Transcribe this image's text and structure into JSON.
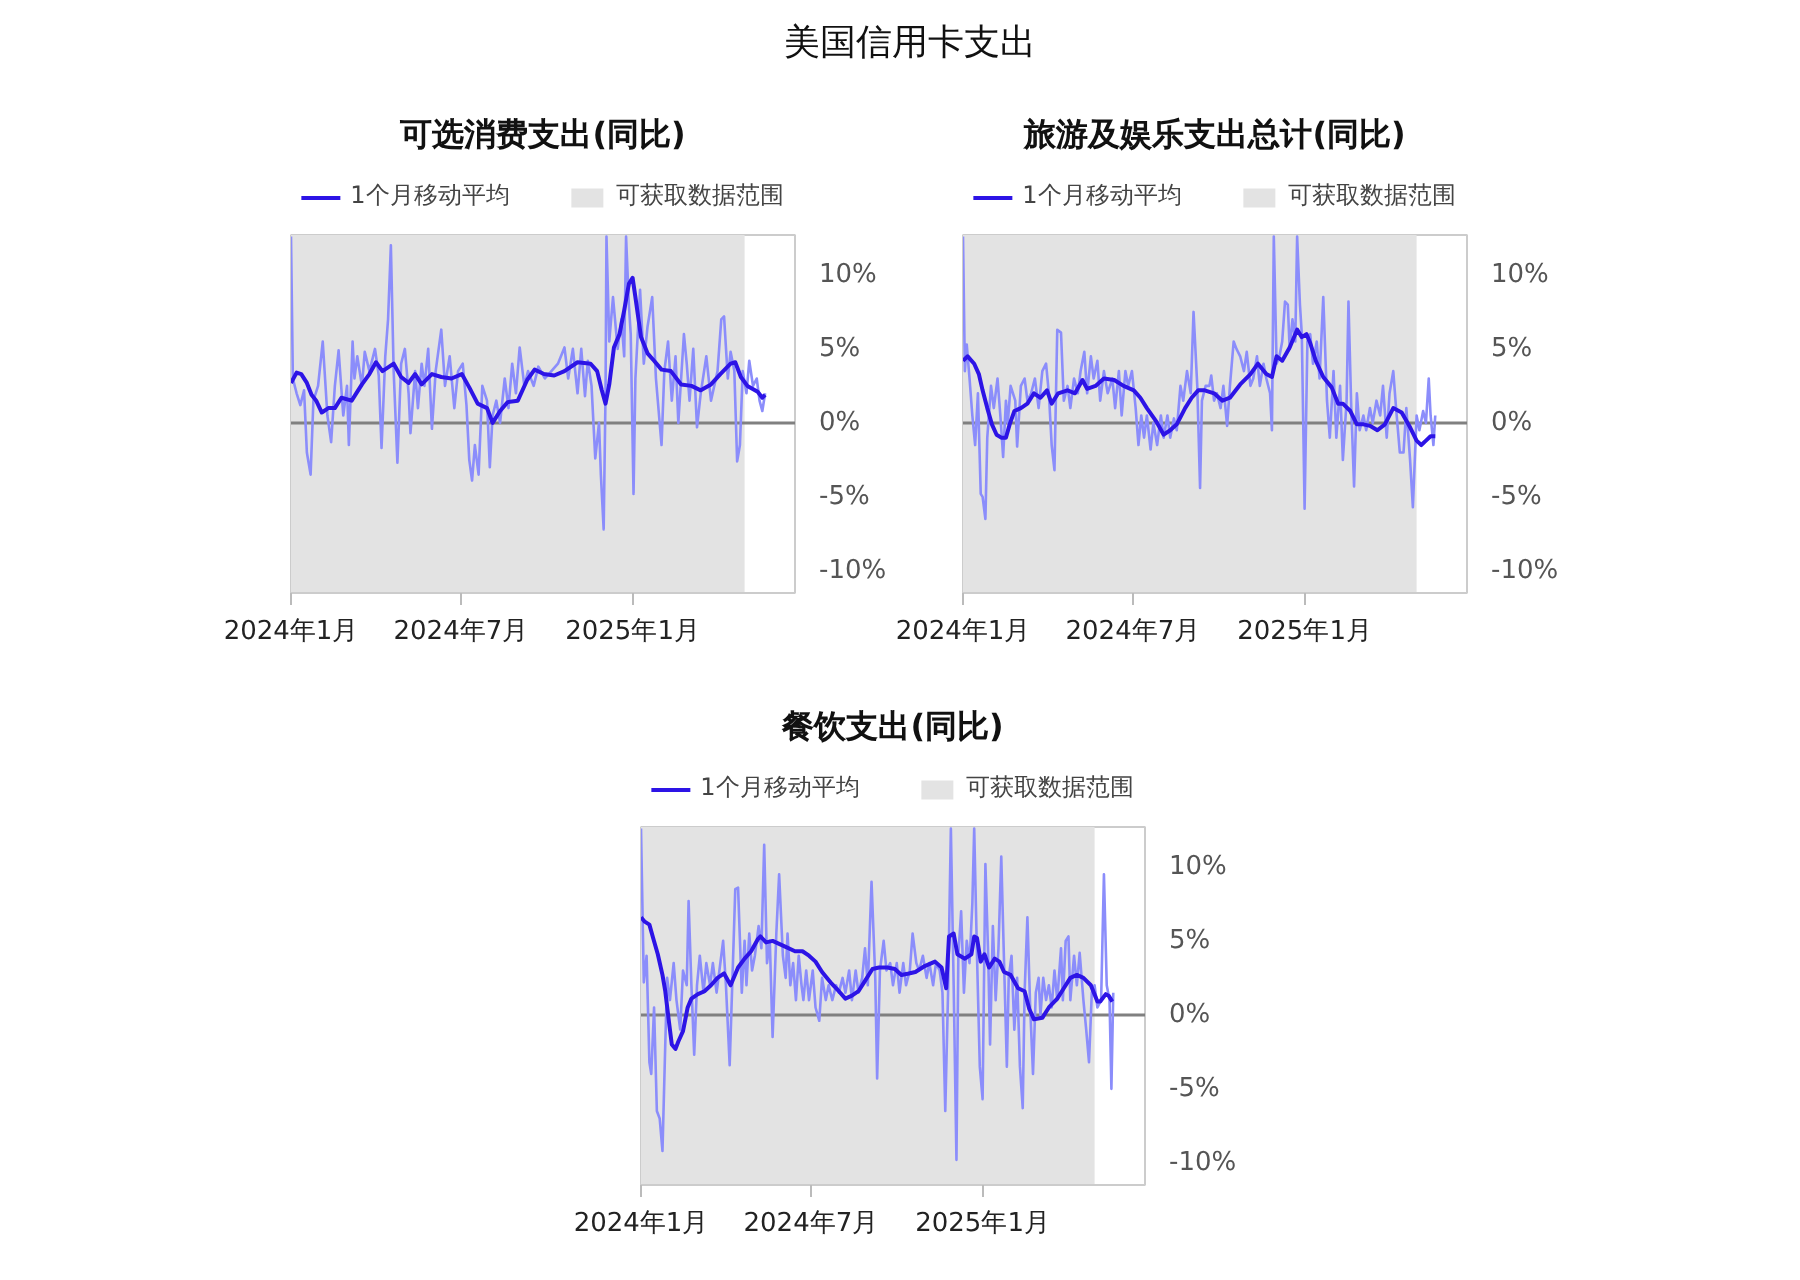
{
  "chart_data": [
    {
      "type": "line",
      "title": "可选消费支出(同比)",
      "annotations": [
        "美国信用卡支出"
      ],
      "legend": "top",
      "grid": false,
      "xlim": [
        "2024-01-01",
        "2025-06-24"
      ],
      "xticks": [
        {
          "value": "2024-01-01",
          "label": "2024年1月"
        },
        {
          "value": "2024-07-01",
          "label": "2024年7月"
        },
        {
          "value": "2025-01-01",
          "label": "2025年1月"
        }
      ],
      "ylim": [
        -11.5,
        12.7
      ],
      "yticks": [
        {
          "value": -10,
          "label": "-10%"
        },
        {
          "value": -5,
          "label": "-5%"
        },
        {
          "value": 0,
          "label": "0%"
        },
        {
          "value": 5,
          "label": "5%"
        },
        {
          "value": 10,
          "label": "10%"
        }
      ],
      "bands": [
        {
          "axis": "x",
          "from": "2024-01-01",
          "to": "2025-05-01",
          "label": "可获取数据范围",
          "color": "#e3e3e3"
        }
      ],
      "ref_lines": [
        {
          "axis": "y",
          "value": 0,
          "color": "#808080"
        }
      ],
      "series": [
        {
          "color": "#8b8dfb",
          "x": [
            "2024-01-01",
            "2024-01-03",
            "2024-01-07",
            "2024-01-11",
            "2024-01-15",
            "2024-01-18",
            "2024-01-22",
            "2024-01-25",
            "2024-01-30",
            "2024-02-04",
            "2024-02-09",
            "2024-02-13",
            "2024-02-17",
            "2024-02-21",
            "2024-02-26",
            "2024-03-01",
            "2024-03-03",
            "2024-03-07",
            "2024-03-09",
            "2024-03-12",
            "2024-03-17",
            "2024-03-20",
            "2024-03-25",
            "2024-03-31",
            "2024-04-04",
            "2024-04-07",
            "2024-04-11",
            "2024-04-14",
            "2024-04-17",
            "2024-04-20",
            "2024-04-24",
            "2024-04-28",
            "2024-05-02",
            "2024-05-06",
            "2024-05-08",
            "2024-05-13",
            "2024-05-16",
            "2024-05-20",
            "2024-05-23",
            "2024-05-27",
            "2024-05-31",
            "2024-06-04",
            "2024-06-10",
            "2024-06-14",
            "2024-06-19",
            "2024-06-24",
            "2024-06-28",
            "2024-07-03",
            "2024-07-07",
            "2024-07-10",
            "2024-07-13",
            "2024-07-16",
            "2024-07-20",
            "2024-07-24",
            "2024-07-29",
            "2024-08-01",
            "2024-08-04",
            "2024-08-08",
            "2024-08-12",
            "2024-08-17",
            "2024-08-21",
            "2024-08-25",
            "2024-08-29",
            "2024-09-02",
            "2024-09-07",
            "2024-09-11",
            "2024-09-17",
            "2024-09-22",
            "2024-09-29",
            "2024-10-06",
            "2024-10-13",
            "2024-10-20",
            "2024-10-24",
            "2024-10-29",
            "2024-11-03",
            "2024-11-07",
            "2024-11-11",
            "2024-11-14",
            "2024-11-18",
            "2024-11-22",
            "2024-11-26",
            "2024-11-28",
            "2024-12-01",
            "2024-12-03",
            "2024-12-04",
            "2024-12-07",
            "2024-12-11",
            "2024-12-16",
            "2024-12-20",
            "2024-12-23",
            "2024-12-25",
            "2024-12-28",
            "2024-12-30",
            "2025-01-02",
            "2025-01-04",
            "2025-01-09",
            "2025-01-13",
            "2025-01-17",
            "2025-01-22",
            "2025-01-26",
            "2025-02-01",
            "2025-02-04",
            "2025-02-08",
            "2025-02-12",
            "2025-02-16",
            "2025-02-19",
            "2025-02-22",
            "2025-02-25",
            "2025-02-28",
            "2025-03-03",
            "2025-03-07",
            "2025-03-11",
            "2025-03-15",
            "2025-03-21",
            "2025-03-26",
            "2025-04-02",
            "2025-04-06",
            "2025-04-09",
            "2025-04-13",
            "2025-04-16",
            "2025-04-20",
            "2025-04-23",
            "2025-04-26",
            "2025-04-29",
            "2025-05-03",
            "2025-05-06",
            "2025-05-10",
            "2025-05-14",
            "2025-05-17",
            "2025-05-20",
            "2025-05-23"
          ],
          "values": [
            12.6,
            3.0,
            2.0,
            1.2,
            2.2,
            -2.0,
            -3.5,
            1.5,
            2.5,
            5.5,
            0.5,
            -1.3,
            2.5,
            4.9,
            0.5,
            2.5,
            -1.5,
            5.5,
            3.0,
            4.5,
            2.5,
            4.8,
            3.5,
            5.0,
            3.2,
            -1.7,
            4.5,
            7.0,
            12.0,
            3.5,
            -2.7,
            4.0,
            5.0,
            2.0,
            -0.7,
            3.5,
            1.0,
            4.0,
            2.5,
            5.0,
            -0.4,
            3.5,
            6.3,
            2.5,
            4.5,
            1.0,
            3.5,
            4.0,
            1.2,
            -2.5,
            -3.9,
            -1.5,
            -3.5,
            2.5,
            1.5,
            -3.0,
            0.5,
            1.5,
            0.0,
            3.0,
            1.0,
            4.0,
            2.0,
            5.1,
            2.5,
            3.5,
            2.5,
            3.8,
            3.0,
            3.5,
            4.0,
            5.1,
            3.0,
            5.0,
            2.0,
            5.0,
            1.8,
            4.2,
            2.5,
            -2.4,
            0.0,
            -3.5,
            -7.2,
            2.0,
            12.6,
            5.5,
            8.5,
            5.0,
            7.0,
            4.5,
            12.6,
            8.0,
            6.0,
            -4.8,
            3.0,
            9.0,
            4.0,
            6.5,
            8.5,
            3.0,
            -1.5,
            3.5,
            5.5,
            1.5,
            4.5,
            0.0,
            3.0,
            6.0,
            4.0,
            1.5,
            5.0,
            -0.3,
            2.0,
            4.5,
            1.5,
            3.5,
            7.0,
            7.2,
            3.0,
            4.8,
            3.5,
            -2.6,
            -1.5,
            3.5,
            2.0,
            4.2,
            2.5,
            3.0,
            1.5,
            0.8,
            2.0
          ]
        },
        {
          "name": "1个月移动平均",
          "color": "#2d14e6",
          "x": [
            "2024-01-01",
            "2024-01-07",
            "2024-01-12",
            "2024-01-18",
            "2024-01-23",
            "2024-01-28",
            "2024-02-03",
            "2024-02-10",
            "2024-02-17",
            "2024-02-24",
            "2024-03-06",
            "2024-03-17",
            "2024-03-25",
            "2024-04-01",
            "2024-04-08",
            "2024-04-20",
            "2024-04-28",
            "2024-05-06",
            "2024-05-13",
            "2024-05-20",
            "2024-05-31",
            "2024-06-10",
            "2024-06-21",
            "2024-07-02",
            "2024-07-10",
            "2024-07-19",
            "2024-07-29",
            "2024-08-04",
            "2024-08-12",
            "2024-08-20",
            "2024-08-31",
            "2024-09-10",
            "2024-09-18",
            "2024-09-28",
            "2024-10-09",
            "2024-10-20",
            "2024-11-03",
            "2024-11-17",
            "2024-11-24",
            "2024-11-29",
            "2024-12-03",
            "2024-12-07",
            "2024-12-12",
            "2024-12-18",
            "2024-12-23",
            "2024-12-28",
            "2025-01-01",
            "2025-01-04",
            "2025-01-10",
            "2025-01-17",
            "2025-01-24",
            "2025-02-01",
            "2025-02-11",
            "2025-02-22",
            "2025-03-05",
            "2025-03-15",
            "2025-03-26",
            "2025-04-05",
            "2025-04-16",
            "2025-04-21",
            "2025-04-27",
            "2025-05-04",
            "2025-05-15",
            "2025-05-20",
            "2025-05-23"
          ],
          "values": [
            2.7,
            3.4,
            3.3,
            2.7,
            1.9,
            1.5,
            0.7,
            1.0,
            1.0,
            1.7,
            1.5,
            2.6,
            3.3,
            4.1,
            3.5,
            4.0,
            3.1,
            2.7,
            3.3,
            2.6,
            3.3,
            3.1,
            3.0,
            3.3,
            2.4,
            1.3,
            1.0,
            0.0,
            0.8,
            1.4,
            1.5,
            2.9,
            3.6,
            3.3,
            3.2,
            3.5,
            4.1,
            4.0,
            3.5,
            2.2,
            1.3,
            2.6,
            5.1,
            6.0,
            7.6,
            9.4,
            9.8,
            8.5,
            5.8,
            4.7,
            4.2,
            3.6,
            3.5,
            2.6,
            2.5,
            2.2,
            2.6,
            3.3,
            4.0,
            4.1,
            3.1,
            2.5,
            2.1,
            1.7,
            1.9
          ]
        }
      ]
    },
    {
      "type": "line",
      "title": "旅游及娱乐支出总计(同比)",
      "legend": "top",
      "grid": false,
      "xlim": [
        "2024-01-01",
        "2025-06-24"
      ],
      "xticks": [
        {
          "value": "2024-01-01",
          "label": "2024年1月"
        },
        {
          "value": "2024-07-01",
          "label": "2024年7月"
        },
        {
          "value": "2025-01-01",
          "label": "2025年1月"
        }
      ],
      "ylim": [
        -11.5,
        12.7
      ],
      "yticks": [
        {
          "value": -10,
          "label": "-10%"
        },
        {
          "value": -5,
          "label": "-5%"
        },
        {
          "value": 0,
          "label": "0%"
        },
        {
          "value": 5,
          "label": "5%"
        },
        {
          "value": 10,
          "label": "10%"
        }
      ],
      "bands": [
        {
          "axis": "x",
          "from": "2024-01-01",
          "to": "2025-05-01",
          "label": "可获取数据范围",
          "color": "#e3e3e3"
        }
      ],
      "ref_lines": [
        {
          "axis": "y",
          "value": 0,
          "color": "#808080"
        }
      ],
      "series": [
        {
          "color": "#8b8dfb",
          "x": [
            "2024-01-01",
            "2024-01-03",
            "2024-01-05",
            "2024-01-08",
            "2024-01-11",
            "2024-01-14",
            "2024-01-17",
            "2024-01-20",
            "2024-01-22",
            "2024-01-25",
            "2024-01-27",
            "2024-01-31",
            "2024-02-03",
            "2024-02-07",
            "2024-02-10",
            "2024-02-13",
            "2024-02-16",
            "2024-02-18",
            "2024-02-21",
            "2024-02-26",
            "2024-02-28",
            "2024-03-03",
            "2024-03-07",
            "2024-03-10",
            "2024-03-14",
            "2024-03-18",
            "2024-03-22",
            "2024-03-26",
            "2024-03-30",
            "2024-04-02",
            "2024-04-05",
            "2024-04-08",
            "2024-04-11",
            "2024-04-15",
            "2024-04-18",
            "2024-04-22",
            "2024-04-25",
            "2024-04-29",
            "2024-05-03",
            "2024-05-06",
            "2024-05-10",
            "2024-05-13",
            "2024-05-17",
            "2024-05-20",
            "2024-05-24",
            "2024-05-27",
            "2024-05-31",
            "2024-06-04",
            "2024-06-09",
            "2024-06-12",
            "2024-06-16",
            "2024-06-19",
            "2024-06-23",
            "2024-06-26",
            "2024-06-30",
            "2024-07-04",
            "2024-07-07",
            "2024-07-10",
            "2024-07-13",
            "2024-07-16",
            "2024-07-20",
            "2024-07-23",
            "2024-07-27",
            "2024-07-31",
            "2024-08-03",
            "2024-08-07",
            "2024-08-10",
            "2024-08-14",
            "2024-08-17",
            "2024-08-21",
            "2024-08-24",
            "2024-08-28",
            "2024-09-01",
            "2024-09-04",
            "2024-09-08",
            "2024-09-11",
            "2024-09-13",
            "2024-09-17",
            "2024-09-21",
            "2024-09-23",
            "2024-09-26",
            "2024-09-29",
            "2024-10-03",
            "2024-10-06",
            "2024-10-10",
            "2024-10-13",
            "2024-10-17",
            "2024-10-20",
            "2024-10-24",
            "2024-10-28",
            "2024-10-31",
            "2024-11-04",
            "2024-11-07",
            "2024-11-11",
            "2024-11-14",
            "2024-11-18",
            "2024-11-21",
            "2024-11-25",
            "2024-11-27",
            "2024-11-29",
            "2024-12-02",
            "2024-12-05",
            "2024-12-08",
            "2024-12-11",
            "2024-12-14",
            "2024-12-16",
            "2024-12-19",
            "2024-12-22",
            "2024-12-24",
            "2024-12-27",
            "2024-12-29",
            "2025-01-01",
            "2025-01-04",
            "2025-01-07",
            "2025-01-10",
            "2025-01-14",
            "2025-01-17",
            "2025-01-21",
            "2025-01-25",
            "2025-01-28",
            "2025-02-01",
            "2025-02-04",
            "2025-02-08",
            "2025-02-11",
            "2025-02-15",
            "2025-02-17",
            "2025-02-20",
            "2025-02-23",
            "2025-02-26",
            "2025-03-01",
            "2025-03-05",
            "2025-03-08",
            "2025-03-12",
            "2025-03-15",
            "2025-03-19",
            "2025-03-23",
            "2025-03-26",
            "2025-03-30",
            "2025-04-02",
            "2025-04-06",
            "2025-04-09",
            "2025-04-13",
            "2025-04-17",
            "2025-04-20",
            "2025-04-24",
            "2025-04-27",
            "2025-05-01",
            "2025-05-04",
            "2025-05-08",
            "2025-05-11",
            "2025-05-14",
            "2025-05-16",
            "2025-05-19",
            "2025-05-21"
          ],
          "values": [
            12.6,
            3.5,
            5.3,
            3.0,
            0.5,
            -1.5,
            2.0,
            -4.8,
            -5.0,
            -6.5,
            -1.0,
            2.5,
            1.0,
            3.0,
            0.5,
            -2.3,
            1.5,
            0.0,
            2.5,
            1.5,
            -1.6,
            2.5,
            3.0,
            1.5,
            2.0,
            3.0,
            1.0,
            3.5,
            4.0,
            2.0,
            -1.5,
            -3.2,
            6.3,
            6.1,
            1.5,
            2.5,
            1.0,
            3.0,
            2.0,
            3.5,
            4.8,
            2.0,
            4.5,
            3.0,
            4.2,
            1.5,
            3.5,
            2.0,
            3.0,
            1.0,
            3.5,
            0.5,
            3.5,
            2.5,
            3.5,
            1.0,
            -1.5,
            0.5,
            -1.0,
            0.5,
            -1.8,
            0.0,
            -1.5,
            0.5,
            -1.0,
            0.5,
            -1.0,
            0.3,
            -0.5,
            2.5,
            1.5,
            3.5,
            2.0,
            7.5,
            2.5,
            -4.4,
            1.5,
            2.5,
            2.5,
            3.2,
            1.5,
            2.0,
            1.0,
            2.5,
            -0.2,
            2.5,
            5.5,
            5.0,
            4.5,
            3.5,
            4.8,
            2.5,
            3.0,
            4.5,
            2.5,
            4.0,
            3.0,
            2.0,
            -0.5,
            12.6,
            4.0,
            4.5,
            5.5,
            8.2,
            8.0,
            5.0,
            7.0,
            5.5,
            12.6,
            8.0,
            6.0,
            -5.8,
            5.5,
            6.0,
            4.0,
            5.5,
            3.0,
            8.5,
            1.5,
            -1.0,
            3.5,
            -1.0,
            2.5,
            -2.5,
            1.5,
            8.2,
            1.0,
            -4.3,
            2.0,
            -0.5,
            0.5,
            -0.5,
            1.0,
            0.0,
            1.5,
            0.5,
            2.5,
            -1.0,
            2.0,
            3.5,
            1.0,
            -2.0,
            -2.0,
            1.0,
            -2.5,
            -5.7,
            0.5,
            -0.5,
            0.8,
            0.0,
            3.0,
            0.5,
            -1.5,
            0.5
          ]
        },
        {
          "name": "1个月移动平均",
          "color": "#2d14e6",
          "x": [
            "2024-01-01",
            "2024-01-06",
            "2024-01-13",
            "2024-01-18",
            "2024-01-22",
            "2024-01-27",
            "2024-02-01",
            "2024-02-06",
            "2024-02-11",
            "2024-02-16",
            "2024-02-20",
            "2024-02-25",
            "2024-03-03",
            "2024-03-10",
            "2024-03-17",
            "2024-03-24",
            "2024-03-31",
            "2024-04-05",
            "2024-04-12",
            "2024-04-22",
            "2024-04-30",
            "2024-05-08",
            "2024-05-13",
            "2024-05-22",
            "2024-05-31",
            "2024-06-11",
            "2024-06-21",
            "2024-07-02",
            "2024-07-09",
            "2024-07-16",
            "2024-07-26",
            "2024-08-03",
            "2024-08-10",
            "2024-08-17",
            "2024-08-26",
            "2024-09-02",
            "2024-09-09",
            "2024-09-16",
            "2024-09-26",
            "2024-10-05",
            "2024-10-13",
            "2024-10-24",
            "2024-11-04",
            "2024-11-12",
            "2024-11-21",
            "2024-11-27",
            "2024-12-02",
            "2024-12-08",
            "2024-12-16",
            "2024-12-24",
            "2024-12-29",
            "2025-01-03",
            "2025-01-07",
            "2025-01-13",
            "2025-01-21",
            "2025-01-30",
            "2025-02-06",
            "2025-02-11",
            "2025-02-19",
            "2025-02-26",
            "2025-03-05",
            "2025-03-12",
            "2025-03-20",
            "2025-03-28",
            "2025-04-06",
            "2025-04-15",
            "2025-04-24",
            "2025-05-01",
            "2025-05-06",
            "2025-05-11",
            "2025-05-16",
            "2025-05-21"
          ],
          "values": [
            4.2,
            4.5,
            4.0,
            3.3,
            2.2,
            1.0,
            -0.1,
            -0.8,
            -1.0,
            -1.0,
            -0.1,
            0.8,
            1.0,
            1.3,
            2.0,
            1.7,
            2.2,
            1.3,
            2.0,
            2.2,
            2.0,
            2.9,
            2.3,
            2.5,
            3.0,
            2.9,
            2.5,
            2.2,
            1.7,
            1.0,
            0.1,
            -0.8,
            -0.5,
            -0.1,
            1.0,
            1.7,
            2.2,
            2.2,
            2.0,
            1.5,
            1.7,
            2.6,
            3.3,
            4.0,
            3.3,
            3.1,
            4.5,
            4.2,
            5.1,
            6.3,
            5.8,
            6.0,
            5.4,
            4.2,
            3.1,
            2.4,
            1.3,
            1.3,
            0.8,
            -0.1,
            -0.1,
            -0.2,
            -0.5,
            -0.1,
            1.0,
            0.7,
            -0.3,
            -1.2,
            -1.5,
            -1.2,
            -0.9,
            -0.9
          ]
        }
      ]
    },
    {
      "type": "line",
      "title": "餐饮支出(同比)",
      "legend": "top",
      "grid": false,
      "xlim": [
        "2024-01-01",
        "2025-06-24"
      ],
      "xticks": [
        {
          "value": "2024-01-01",
          "label": "2024年1月"
        },
        {
          "value": "2024-07-01",
          "label": "2024年7月"
        },
        {
          "value": "2025-01-01",
          "label": "2025年1月"
        }
      ],
      "ylim": [
        -11.5,
        12.7
      ],
      "yticks": [
        {
          "value": -10,
          "label": "-10%"
        },
        {
          "value": -5,
          "label": "-5%"
        },
        {
          "value": 0,
          "label": "0%"
        },
        {
          "value": 5,
          "label": "5%"
        },
        {
          "value": 10,
          "label": "10%"
        }
      ],
      "bands": [
        {
          "axis": "x",
          "from": "2024-01-01",
          "to": "2025-05-01",
          "label": "可获取数据范围",
          "color": "#e3e3e3"
        }
      ],
      "ref_lines": [
        {
          "axis": "y",
          "value": 0,
          "color": "#808080"
        }
      ],
      "series": [
        {
          "color": "#8b8dfb",
          "x": [
            "2024-01-01",
            "2024-01-04",
            "2024-01-07",
            "2024-01-10",
            "2024-01-12",
            "2024-01-15",
            "2024-01-18",
            "2024-01-21",
            "2024-01-24",
            "2024-01-27",
            "2024-01-29",
            "2024-02-01",
            "2024-02-05",
            "2024-02-08",
            "2024-02-12",
            "2024-02-15",
            "2024-02-19",
            "2024-02-21",
            "2024-02-24",
            "2024-02-27",
            "2024-03-01",
            "2024-03-04",
            "2024-03-08",
            "2024-03-11",
            "2024-03-15",
            "2024-03-18",
            "2024-03-22",
            "2024-03-25",
            "2024-03-29",
            "2024-04-01",
            "2024-04-05",
            "2024-04-08",
            "2024-04-11",
            "2024-04-14",
            "2024-04-18",
            "2024-04-21",
            "2024-04-23",
            "2024-04-26",
            "2024-04-29",
            "2024-05-02",
            "2024-05-06",
            "2024-05-09",
            "2024-05-12",
            "2024-05-15",
            "2024-05-18",
            "2024-05-21",
            "2024-05-25",
            "2024-05-28",
            "2024-06-01",
            "2024-06-04",
            "2024-06-06",
            "2024-06-09",
            "2024-06-12",
            "2024-06-15",
            "2024-06-18",
            "2024-06-21",
            "2024-06-23",
            "2024-06-26",
            "2024-06-29",
            "2024-07-03",
            "2024-07-06",
            "2024-07-10",
            "2024-07-13",
            "2024-07-17",
            "2024-07-20",
            "2024-07-24",
            "2024-07-28",
            "2024-07-31",
            "2024-08-04",
            "2024-08-07",
            "2024-08-11",
            "2024-08-14",
            "2024-08-18",
            "2024-08-21",
            "2024-08-25",
            "2024-08-28",
            "2024-08-31",
            "2024-09-04",
            "2024-09-08",
            "2024-09-10",
            "2024-09-13",
            "2024-09-17",
            "2024-09-20",
            "2024-09-24",
            "2024-09-27",
            "2024-10-01",
            "2024-10-04",
            "2024-10-08",
            "2024-10-11",
            "2024-10-15",
            "2024-10-18",
            "2024-10-22",
            "2024-10-25",
            "2024-10-29",
            "2024-11-02",
            "2024-11-05",
            "2024-11-09",
            "2024-11-12",
            "2024-11-16",
            "2024-11-19",
            "2024-11-22",
            "2024-11-25",
            "2024-11-28",
            "2024-12-01",
            "2024-12-04",
            "2024-12-06",
            "2024-12-09",
            "2024-12-12",
            "2024-12-15",
            "2024-12-18",
            "2024-12-21",
            "2024-12-23",
            "2024-12-26",
            "2024-12-29",
            "2025-01-01",
            "2025-01-04",
            "2025-01-07",
            "2025-01-09",
            "2025-01-12",
            "2025-01-15",
            "2025-01-18",
            "2025-01-21",
            "2025-01-24",
            "2025-01-27",
            "2025-01-29",
            "2025-02-01",
            "2025-02-04",
            "2025-02-07",
            "2025-02-10",
            "2025-02-13",
            "2025-02-15",
            "2025-02-18",
            "2025-02-21",
            "2025-02-24",
            "2025-02-27",
            "2025-03-02",
            "2025-03-04",
            "2025-03-07",
            "2025-03-10",
            "2025-03-13",
            "2025-03-16",
            "2025-03-19",
            "2025-03-22",
            "2025-03-26",
            "2025-03-28",
            "2025-03-31",
            "2025-04-03",
            "2025-04-05",
            "2025-04-09",
            "2025-04-12",
            "2025-04-15",
            "2025-04-19",
            "2025-04-22",
            "2025-04-25",
            "2025-04-28",
            "2025-05-01",
            "2025-05-04",
            "2025-05-08",
            "2025-05-11",
            "2025-05-14",
            "2025-05-17",
            "2025-05-19",
            "2025-05-21"
          ],
          "values": [
            12.6,
            2.2,
            4.0,
            -3.2,
            -4.0,
            0.5,
            -6.5,
            -7.0,
            -9.2,
            -2.0,
            2.5,
            1.0,
            3.5,
            1.0,
            -1.0,
            3.0,
            2.0,
            7.7,
            2.0,
            -2.7,
            2.0,
            4.0,
            1.5,
            3.5,
            2.0,
            3.5,
            1.5,
            3.0,
            5.0,
            2.0,
            -3.4,
            2.5,
            8.5,
            8.6,
            1.5,
            5.0,
            2.0,
            5.5,
            3.0,
            4.0,
            6.0,
            4.5,
            11.5,
            3.5,
            5.0,
            -1.5,
            5.5,
            9.5,
            4.0,
            2.5,
            5.5,
            2.0,
            3.5,
            1.0,
            4.0,
            2.0,
            1.0,
            3.0,
            1.0,
            3.0,
            0.5,
            -0.4,
            2.5,
            1.0,
            2.0,
            1.0,
            2.0,
            1.5,
            2.5,
            1.5,
            3.0,
            1.0,
            3.0,
            1.5,
            2.5,
            4.5,
            2.0,
            9.0,
            2.5,
            -4.3,
            3.0,
            5.0,
            3.0,
            3.5,
            2.0,
            3.5,
            1.5,
            3.5,
            2.0,
            3.0,
            5.5,
            3.5,
            3.0,
            4.0,
            2.5,
            3.5,
            2.0,
            3.5,
            3.0,
            1.5,
            -6.5,
            1.5,
            12.6,
            2.0,
            -9.8,
            4.0,
            7.0,
            1.5,
            5.0,
            3.5,
            7.5,
            12.6,
            4.0,
            -3.5,
            -5.7,
            10.2,
            4.0,
            -2.0,
            6.0,
            1.0,
            4.5,
            10.7,
            3.5,
            -3.5,
            2.5,
            4.0,
            -1.0,
            2.5,
            -3.5,
            -6.3,
            1.5,
            6.6,
            0.5,
            -4.0,
            1.5,
            2.5,
            0.0,
            2.5,
            1.0,
            2.0,
            0.5,
            3.0,
            1.0,
            4.5,
            1.0,
            5.0,
            5.3,
            1.0,
            4.0,
            2.0,
            4.2,
            1.0,
            -1.0,
            -3.2,
            1.5,
            2.0,
            0.5,
            1.0,
            9.5,
            2.0,
            1.0,
            -5.0,
            1.5
          ]
        },
        {
          "name": "1个月移动平均",
          "color": "#2d14e6",
          "x": [
            "2024-01-01",
            "2024-01-05",
            "2024-01-10",
            "2024-01-14",
            "2024-01-19",
            "2024-01-24",
            "2024-01-27",
            "2024-01-31",
            "2024-02-03",
            "2024-02-07",
            "2024-02-10",
            "2024-02-15",
            "2024-02-20",
            "2024-02-24",
            "2024-03-02",
            "2024-03-09",
            "2024-03-16",
            "2024-03-23",
            "2024-03-30",
            "2024-04-06",
            "2024-04-14",
            "2024-04-21",
            "2024-04-28",
            "2024-05-05",
            "2024-05-08",
            "2024-05-14",
            "2024-05-21",
            "2024-05-28",
            "2024-06-04",
            "2024-06-14",
            "2024-06-22",
            "2024-06-29",
            "2024-07-06",
            "2024-07-13",
            "2024-07-22",
            "2024-07-31",
            "2024-08-07",
            "2024-08-14",
            "2024-08-21",
            "2024-08-28",
            "2024-09-05",
            "2024-09-12",
            "2024-09-21",
            "2024-09-29",
            "2024-10-06",
            "2024-10-14",
            "2024-10-21",
            "2024-10-31",
            "2024-11-11",
            "2024-11-18",
            "2024-11-23",
            "2024-11-26",
            "2024-12-01",
            "2024-12-05",
            "2024-12-13",
            "2024-12-20",
            "2024-12-23",
            "2024-12-26",
            "2024-12-30",
            "2025-01-03",
            "2025-01-08",
            "2025-01-14",
            "2025-01-19",
            "2025-01-24",
            "2025-01-31",
            "2025-02-08",
            "2025-02-15",
            "2025-02-20",
            "2025-02-25",
            "2025-03-06",
            "2025-03-13",
            "2025-03-22",
            "2025-03-29",
            "2025-04-05",
            "2025-04-12",
            "2025-04-19",
            "2025-04-27",
            "2025-05-04",
            "2025-05-07",
            "2025-05-13",
            "2025-05-16",
            "2025-05-20"
          ],
          "values": [
            6.6,
            6.3,
            6.1,
            5.2,
            4.1,
            2.7,
            1.6,
            -0.5,
            -2.0,
            -2.3,
            -1.8,
            -1.1,
            0.5,
            1.1,
            1.4,
            1.6,
            2.0,
            2.5,
            2.8,
            2.0,
            3.2,
            3.8,
            4.3,
            5.1,
            5.3,
            4.9,
            5.0,
            4.8,
            4.6,
            4.3,
            4.3,
            4.0,
            3.6,
            2.9,
            2.2,
            1.6,
            1.1,
            1.3,
            1.6,
            2.3,
            3.1,
            3.2,
            3.2,
            3.1,
            2.7,
            2.8,
            2.9,
            3.3,
            3.6,
            3.2,
            1.8,
            5.3,
            5.5,
            4.1,
            3.8,
            4.1,
            5.3,
            5.2,
            3.6,
            4.1,
            3.2,
            3.8,
            3.6,
            2.9,
            2.7,
            1.8,
            1.6,
            0.4,
            -0.3,
            -0.2,
            0.5,
            1.1,
            1.8,
            2.5,
            2.7,
            2.5,
            2.0,
            0.9,
            0.9,
            1.4,
            1.3,
            0.9
          ]
        }
      ]
    }
  ]
}
